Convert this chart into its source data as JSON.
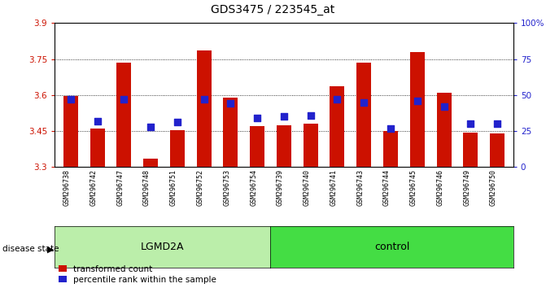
{
  "title": "GDS3475 / 223545_at",
  "samples": [
    "GSM296738",
    "GSM296742",
    "GSM296747",
    "GSM296748",
    "GSM296751",
    "GSM296752",
    "GSM296753",
    "GSM296754",
    "GSM296739",
    "GSM296740",
    "GSM296741",
    "GSM296743",
    "GSM296744",
    "GSM296745",
    "GSM296746",
    "GSM296749",
    "GSM296750"
  ],
  "red_values": [
    3.595,
    3.46,
    3.735,
    3.335,
    3.455,
    3.785,
    3.59,
    3.47,
    3.475,
    3.48,
    3.635,
    3.735,
    3.45,
    3.78,
    3.61,
    3.445,
    3.44
  ],
  "blue_values": [
    47,
    32,
    47,
    28,
    31,
    47,
    44,
    34,
    35,
    36,
    47,
    45,
    27,
    46,
    42,
    30,
    30
  ],
  "ylim_left": [
    3.3,
    3.9
  ],
  "ylim_right": [
    0,
    100
  ],
  "yticks_left": [
    3.3,
    3.45,
    3.6,
    3.75,
    3.9
  ],
  "yticks_right": [
    0,
    25,
    50,
    75,
    100
  ],
  "ytick_labels_right": [
    "0",
    "25",
    "50",
    "75",
    "100%"
  ],
  "grid_lines": [
    3.45,
    3.6,
    3.75
  ],
  "bar_color": "#cc1100",
  "dot_color": "#2222cc",
  "lgmd2a_color": "#bbeeaa",
  "control_color": "#44dd44",
  "bar_bottom": 3.3,
  "bar_width": 0.55,
  "dot_size": 38,
  "xlabel_area_color": "#cccccc",
  "disease_state_label": "disease state",
  "lgmd2a_label": "LGMD2A",
  "control_label": "control",
  "legend_red_label": "transformed count",
  "legend_blue_label": "percentile rank within the sample",
  "lgmd2a_count": 8,
  "control_count": 9
}
